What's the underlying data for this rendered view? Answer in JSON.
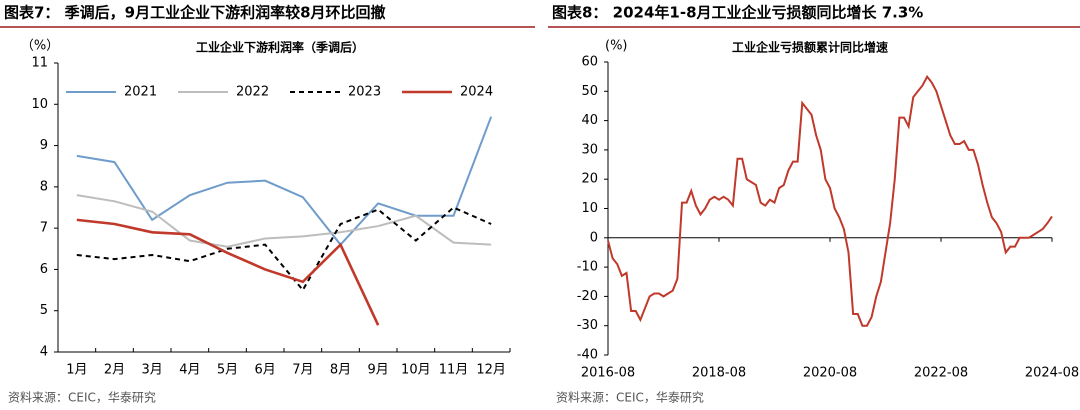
{
  "chart_data": [
    {
      "type": "line",
      "title": "图表7：  季调后，9月工业企业下游利润率较8月环比回撤",
      "subtitle": "工业企业下游利润率（季调后）",
      "y_unit": "（%）",
      "categories": [
        "1月",
        "2月",
        "3月",
        "4月",
        "5月",
        "6月",
        "7月",
        "8月",
        "9月",
        "10月",
        "11月",
        "12月"
      ],
      "series": [
        {
          "name": "2021",
          "color": "#6f9ccb",
          "style": "solid",
          "values": [
            8.75,
            8.6,
            7.2,
            7.8,
            8.1,
            8.15,
            7.75,
            6.6,
            7.6,
            7.3,
            7.3,
            9.7
          ]
        },
        {
          "name": "2022",
          "color": "#bdbdbd",
          "style": "solid",
          "values": [
            7.8,
            7.65,
            7.4,
            6.7,
            6.55,
            6.75,
            6.8,
            6.9,
            7.05,
            7.3,
            6.65,
            6.6
          ]
        },
        {
          "name": "2023",
          "color": "#000000",
          "style": "dashed",
          "values": [
            6.35,
            6.25,
            6.35,
            6.2,
            6.5,
            6.6,
            5.5,
            7.1,
            7.45,
            6.7,
            7.5,
            7.1
          ]
        },
        {
          "name": "2024",
          "color": "#c0392b",
          "style": "bold",
          "values": [
            7.2,
            7.1,
            6.9,
            6.85,
            6.4,
            6.0,
            5.7,
            6.6,
            4.65,
            null,
            null,
            null
          ]
        }
      ],
      "ylim": [
        4,
        11
      ],
      "yticks": [
        4,
        5,
        6,
        7,
        8,
        9,
        10,
        11
      ],
      "legend": "top",
      "source": "资料来源：CEIC，华泰研究"
    },
    {
      "type": "line",
      "title": "图表8：  2024年1-8月工业企业亏损额同比增长 7.3%",
      "subtitle": "工业企业亏损额累计同比增速",
      "y_unit": "(%)",
      "categories": [
        "2016-08",
        null,
        null,
        null,
        null,
        null,
        null,
        null,
        null,
        null,
        null,
        null,
        null,
        null,
        null,
        null,
        null,
        null,
        null,
        null,
        null,
        null,
        null,
        null,
        "2018-08",
        null,
        null,
        null,
        null,
        null,
        null,
        null,
        null,
        null,
        null,
        null,
        null,
        null,
        null,
        null,
        null,
        null,
        null,
        null,
        null,
        null,
        null,
        null,
        "2020-08",
        null,
        null,
        null,
        null,
        null,
        null,
        null,
        null,
        null,
        null,
        null,
        null,
        null,
        null,
        null,
        null,
        null,
        null,
        null,
        null,
        null,
        null,
        null,
        "2022-08",
        null,
        null,
        null,
        null,
        null,
        null,
        null,
        null,
        null,
        null,
        null,
        null,
        null,
        null,
        null,
        null,
        null,
        null,
        null,
        null,
        null,
        null,
        null,
        "2024-08"
      ],
      "series": [
        {
          "name": "工业企业亏损额累计同比增速",
          "color": "#c0392b",
          "style": "solid",
          "values": [
            -1,
            -7,
            -9,
            -13,
            -12,
            -25,
            -25,
            -28,
            -24,
            -20,
            -19,
            -19,
            -20,
            -19,
            -18,
            -14,
            12,
            12,
            16,
            11,
            8,
            10,
            13,
            14,
            13,
            14,
            13,
            11,
            27,
            27,
            20,
            19,
            18,
            12,
            11,
            13,
            12,
            17,
            18,
            23,
            26,
            26,
            46,
            44,
            42,
            35,
            30,
            20,
            17,
            10,
            7,
            3,
            -5,
            -26,
            -26,
            -30,
            -30,
            -27,
            -20,
            -15,
            -5,
            5,
            20,
            41,
            41,
            38,
            48,
            50,
            52,
            55,
            53,
            50,
            45,
            40,
            35,
            32,
            32,
            33,
            30,
            30,
            25,
            18,
            12,
            7,
            5,
            2,
            -5,
            -3,
            -3,
            0,
            0,
            0,
            1,
            2,
            3,
            5,
            7.3
          ]
        }
      ],
      "ylim": [
        -40,
        60
      ],
      "yticks": [
        -40,
        -30,
        -20,
        -10,
        0,
        10,
        20,
        30,
        40,
        50,
        60
      ],
      "source": "资料来源：CEIC，华泰研究"
    }
  ]
}
